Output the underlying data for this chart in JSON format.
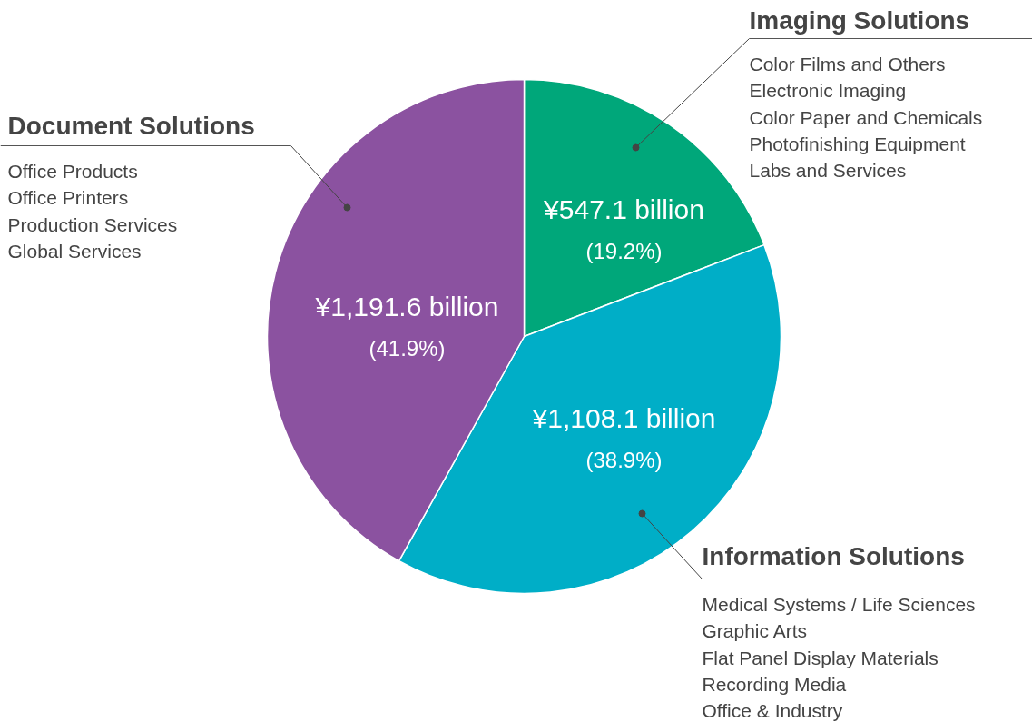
{
  "chart_data": {
    "type": "pie",
    "categories": [
      "Imaging Solutions",
      "Information Solutions",
      "Document Solutions"
    ],
    "values": [
      19.2,
      38.9,
      41.9
    ],
    "colors": [
      "#00a77a",
      "#00aec7",
      "#8b52a0"
    ],
    "value_labels": [
      "¥547.1 billion\n(19.2%)",
      "¥1,108.1 billion\n(38.9%)",
      "¥1,191.6 billion\n(41.9%)"
    ],
    "annotations": [
      "Color Films and Others\nElectronic Imaging\nColor Paper and Chemicals\nPhotofinishing Equipment\nLabs and Services",
      "Medical Systems / Life Sciences\nGraphic Arts\nFlat Panel Display Materials\nRecording Media\nOffice & Industry",
      "Office Products\nOffice Printers\nProduction Services\nGlobal Services"
    ]
  }
}
